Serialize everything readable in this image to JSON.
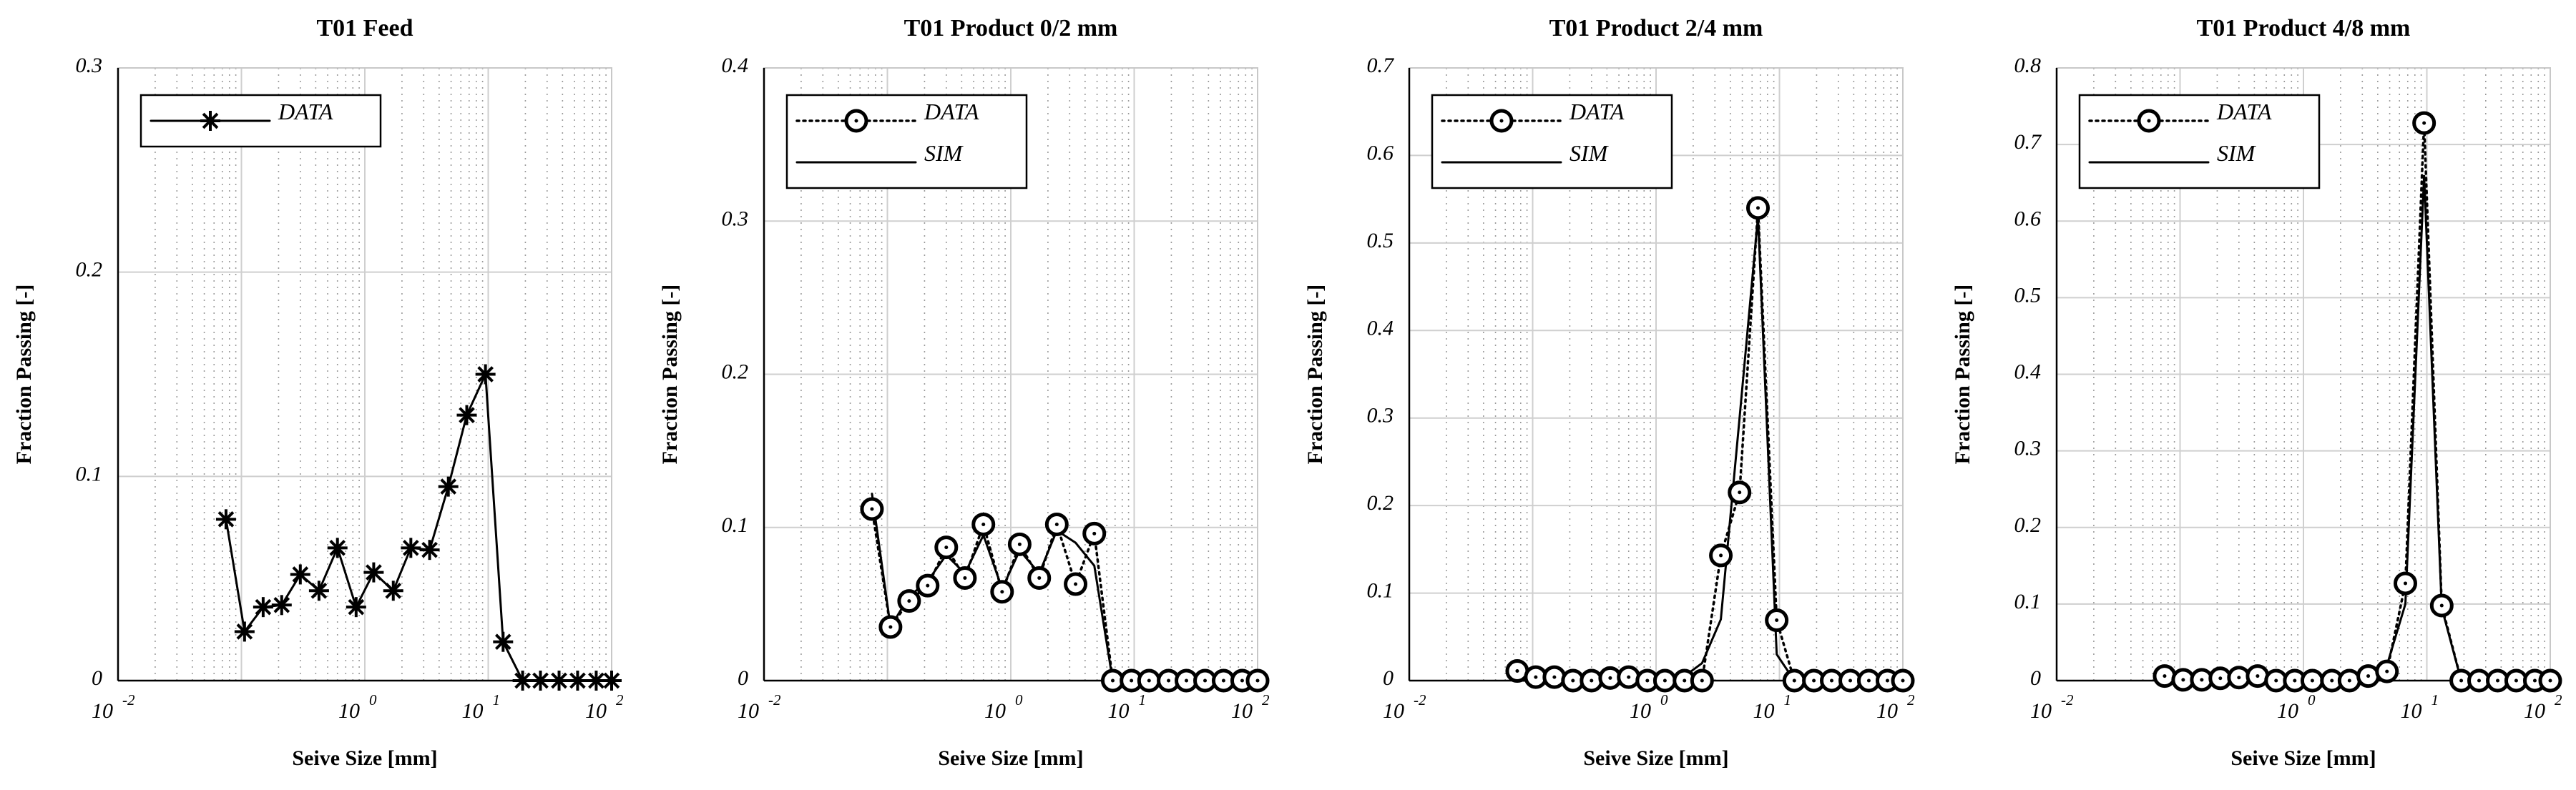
{
  "chart_data": [
    {
      "type": "line",
      "title": "T01 Feed",
      "xlabel": "Seive Size [mm]",
      "ylabel": "Fraction Passing [-]",
      "xscale": "log",
      "xlim": [
        0.01,
        100
      ],
      "ylim": [
        0,
        0.3
      ],
      "yticks": [
        "0",
        "0.1",
        "0.2",
        "0.3"
      ],
      "xticks": [
        {
          "base": "10",
          "exp": "-2"
        },
        {
          "base": "10",
          "exp": "0"
        },
        {
          "base": "10",
          "exp": "1"
        },
        {
          "base": "10",
          "exp": "2"
        }
      ],
      "grid": true,
      "legend": {
        "position": "top-left",
        "entries": [
          "DATA"
        ]
      },
      "x": [
        0.075,
        0.106,
        0.15,
        0.212,
        0.3,
        0.425,
        0.6,
        0.85,
        1.18,
        1.7,
        2.36,
        3.35,
        4.75,
        6.7,
        9.5,
        13.2,
        19,
        26.5,
        37.5,
        53,
        75,
        100
      ],
      "series": [
        {
          "name": "DATA",
          "style": "solid-star",
          "values": [
            0.079,
            0.024,
            0.036,
            0.037,
            0.052,
            0.044,
            0.065,
            0.036,
            0.053,
            0.044,
            0.065,
            0.064,
            0.095,
            0.13,
            0.15,
            0.019,
            0.0,
            0.0,
            0.0,
            0.0,
            0.0,
            0.0
          ]
        }
      ]
    },
    {
      "type": "line",
      "title": "T01 Product 0/2 mm",
      "xlabel": "Seive Size [mm]",
      "ylabel": "Fraction Passing [-]",
      "xscale": "log",
      "xlim": [
        0.01,
        100
      ],
      "ylim": [
        0,
        0.4
      ],
      "yticks": [
        "0",
        "0.1",
        "0.2",
        "0.3",
        "0.4"
      ],
      "xticks": [
        {
          "base": "10",
          "exp": "-2"
        },
        {
          "base": "10",
          "exp": "0"
        },
        {
          "base": "10",
          "exp": "1"
        },
        {
          "base": "10",
          "exp": "2"
        }
      ],
      "grid": true,
      "legend": {
        "position": "top-left",
        "entries": [
          "DATA",
          "SIM"
        ]
      },
      "x": [
        0.075,
        0.106,
        0.15,
        0.212,
        0.3,
        0.425,
        0.6,
        0.85,
        1.18,
        1.7,
        2.36,
        3.35,
        4.75,
        6.7,
        9.5,
        13.2,
        19,
        26.5,
        37.5,
        53,
        75,
        100
      ],
      "series": [
        {
          "name": "DATA",
          "style": "dotted-circle",
          "values": [
            0.112,
            0.035,
            0.052,
            0.062,
            0.087,
            0.067,
            0.102,
            0.058,
            0.089,
            0.067,
            0.102,
            0.063,
            0.096,
            0.0,
            0.0,
            0.0,
            0.0,
            0.0,
            0.0,
            0.0,
            0.0,
            0.0
          ]
        },
        {
          "name": "SIM",
          "style": "solid",
          "values": [
            0.122,
            0.035,
            0.055,
            0.065,
            0.082,
            0.07,
            0.095,
            0.06,
            0.085,
            0.07,
            0.098,
            0.09,
            0.075,
            0.0,
            0.0,
            0.0,
            0.0,
            0.0,
            0.0,
            0.0,
            0.0,
            0.0
          ]
        }
      ]
    },
    {
      "type": "line",
      "title": "T01 Product 2/4 mm",
      "xlabel": "Seive Size [mm]",
      "ylabel": "Fraction Passing [-]",
      "xscale": "log",
      "xlim": [
        0.01,
        100
      ],
      "ylim": [
        0,
        0.7
      ],
      "yticks": [
        "0",
        "0.1",
        "0.2",
        "0.3",
        "0.4",
        "0.5",
        "0.6",
        "0.7"
      ],
      "xticks": [
        {
          "base": "10",
          "exp": "-2"
        },
        {
          "base": "10",
          "exp": "0"
        },
        {
          "base": "10",
          "exp": "1"
        },
        {
          "base": "10",
          "exp": "2"
        }
      ],
      "grid": true,
      "legend": {
        "position": "top-left",
        "entries": [
          "DATA",
          "SIM"
        ]
      },
      "x": [
        0.075,
        0.106,
        0.15,
        0.212,
        0.3,
        0.425,
        0.6,
        0.85,
        1.18,
        1.7,
        2.36,
        3.35,
        4.75,
        6.7,
        9.5,
        13.2,
        19,
        26.5,
        37.5,
        53,
        75,
        100
      ],
      "series": [
        {
          "name": "DATA",
          "style": "dotted-circle",
          "values": [
            0.011,
            0.004,
            0.004,
            0.0,
            0.0,
            0.003,
            0.004,
            0.0,
            0.0,
            0.0,
            0.0,
            0.143,
            0.215,
            0.54,
            0.069,
            0.0,
            0.0,
            0.0,
            0.0,
            0.0,
            0.0,
            0.0
          ]
        },
        {
          "name": "SIM",
          "style": "solid",
          "values": [
            0.0,
            0.0,
            0.0,
            0.0,
            0.0,
            0.0,
            0.0,
            0.0,
            0.0,
            0.005,
            0.02,
            0.07,
            0.3,
            0.53,
            0.03,
            0.0,
            0.0,
            0.0,
            0.0,
            0.0,
            0.0,
            0.0
          ]
        }
      ]
    },
    {
      "type": "line",
      "title": "T01 Product 4/8 mm",
      "xlabel": "Seive Size [mm]",
      "ylabel": "Fraction Passing [-]",
      "xscale": "log",
      "xlim": [
        0.01,
        100
      ],
      "ylim": [
        0,
        0.8
      ],
      "yticks": [
        "0",
        "0.1",
        "0.2",
        "0.3",
        "0.4",
        "0.5",
        "0.6",
        "0.7",
        "0.8"
      ],
      "xticks": [
        {
          "base": "10",
          "exp": "-2"
        },
        {
          "base": "10",
          "exp": "0"
        },
        {
          "base": "10",
          "exp": "1"
        },
        {
          "base": "10",
          "exp": "2"
        }
      ],
      "grid": true,
      "legend": {
        "position": "top-left",
        "entries": [
          "DATA",
          "SIM"
        ]
      },
      "x": [
        0.075,
        0.106,
        0.15,
        0.212,
        0.3,
        0.425,
        0.6,
        0.85,
        1.18,
        1.7,
        2.36,
        3.35,
        4.75,
        6.7,
        9.5,
        13.2,
        19,
        26.5,
        37.5,
        53,
        75,
        100
      ],
      "series": [
        {
          "name": "DATA",
          "style": "dotted-circle",
          "values": [
            0.006,
            0.001,
            0.001,
            0.003,
            0.004,
            0.006,
            0.0,
            0.0,
            0.0,
            0.0,
            0.0,
            0.006,
            0.012,
            0.127,
            0.728,
            0.098,
            0.0,
            0.0,
            0.0,
            0.0,
            0.0,
            0.0
          ]
        },
        {
          "name": "SIM",
          "style": "solid",
          "values": [
            0.0,
            0.0,
            0.0,
            0.0,
            0.0,
            0.0,
            0.0,
            0.0,
            0.0,
            0.0,
            0.0,
            0.002,
            0.02,
            0.1,
            0.66,
            0.095,
            0.0,
            0.0,
            0.0,
            0.0,
            0.0,
            0.0
          ]
        }
      ]
    }
  ]
}
